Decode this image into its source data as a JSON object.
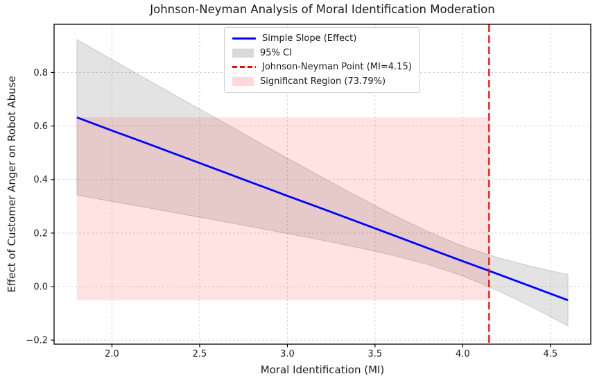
{
  "chart_data": {
    "type": "line",
    "title": "Johnson-Neyman Analysis of Moral Identification Moderation",
    "xlabel": "Moral Identification (MI)",
    "ylabel": "Effect of Customer Anger on Robot Abuse",
    "xlim": [
      1.67,
      4.73
    ],
    "ylim": [
      -0.215,
      0.98
    ],
    "grid": true,
    "x_ticks": {
      "values": [
        2.0,
        2.5,
        3.0,
        3.5,
        4.0,
        4.5
      ],
      "labels": [
        "2.0",
        "2.5",
        "3.0",
        "3.5",
        "4.0",
        "4.5"
      ]
    },
    "y_ticks": {
      "values": [
        -0.2,
        0.0,
        0.2,
        0.4,
        0.6,
        0.8
      ],
      "labels": [
        "−0.2",
        "0.0",
        "0.2",
        "0.4",
        "0.6",
        "0.8"
      ]
    },
    "x": [
      1.8,
      2.0,
      2.2,
      2.4,
      2.6,
      2.8,
      3.0,
      3.2,
      3.4,
      3.6,
      3.8,
      4.0,
      4.2,
      4.4,
      4.6
    ],
    "series": [
      {
        "name": "Simple Slope (Effect)",
        "values": [
          0.632,
          0.583,
          0.535,
          0.486,
          0.437,
          0.388,
          0.339,
          0.291,
          0.242,
          0.193,
          0.144,
          0.095,
          0.047,
          -0.002,
          -0.051
        ]
      },
      {
        "name": "95% CI upper",
        "values": [
          0.923,
          0.848,
          0.774,
          0.7,
          0.627,
          0.553,
          0.48,
          0.408,
          0.337,
          0.269,
          0.206,
          0.151,
          0.108,
          0.074,
          0.045
        ]
      },
      {
        "name": "95% CI lower",
        "values": [
          0.342,
          0.318,
          0.295,
          0.271,
          0.247,
          0.223,
          0.198,
          0.173,
          0.146,
          0.117,
          0.083,
          0.04,
          -0.015,
          -0.078,
          -0.147
        ]
      }
    ],
    "jn_point": {
      "x": 4.15,
      "label": "Johnson-Neyman Point (MI=4.15)"
    },
    "significant_region": {
      "x_start": 1.8,
      "x_end": 4.15,
      "y_bottom": -0.051,
      "y_top": 0.632,
      "label": "Significant Region (73.79%)",
      "percent_shown": "73.79%"
    },
    "legend": {
      "position": "upper center",
      "entries": [
        {
          "label": "Simple Slope (Effect)",
          "swatch": "line",
          "color": "#0000ff"
        },
        {
          "label": "95% CI",
          "swatch": "patch",
          "color": "rgba(128,128,128,0.30)"
        },
        {
          "label": "Johnson-Neyman Point (MI=4.15)",
          "swatch": "dashed",
          "color": "#ff0000"
        },
        {
          "label": "Significant Region (73.79%)",
          "swatch": "patch",
          "color": "rgba(255,0,0,0.15)"
        }
      ]
    },
    "colors": {
      "line": "#0000ff",
      "ci_fill": "rgba(128,128,128,0.22)",
      "ci_edge": "rgba(128,128,128,0.35)",
      "jn_line": "#ff0000",
      "significant_fill": "rgba(255,0,0,0.11)",
      "grid": "#d4d4d4",
      "spine": "#000000"
    }
  }
}
